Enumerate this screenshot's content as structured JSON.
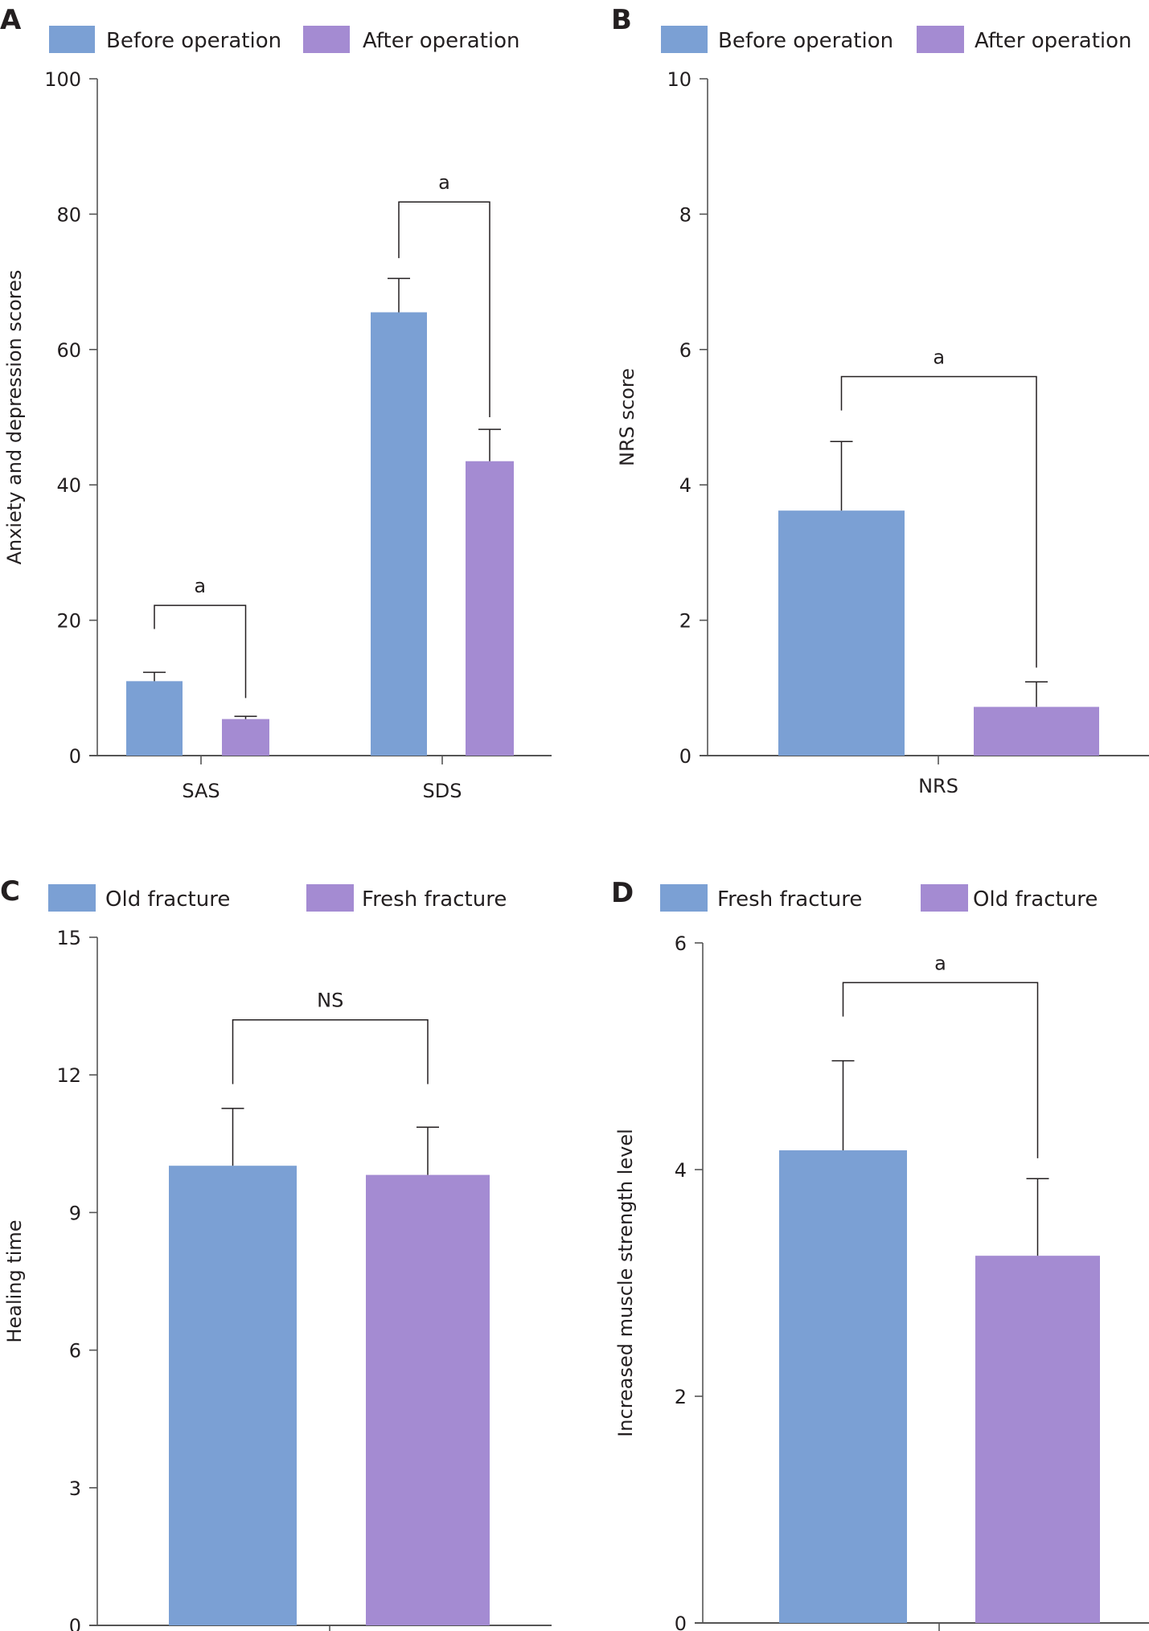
{
  "colors": {
    "blue": "#7ba0d4",
    "purple": "#a48bd2",
    "ink": "#231f20",
    "axis": "#555555"
  },
  "chart_data": [
    {
      "panel": "A",
      "type": "bar",
      "legend": [
        "Before operation",
        "After operation"
      ],
      "legend_position": "top-left",
      "categories": [
        "SAS",
        "SDS"
      ],
      "series": [
        {
          "name": "Before operation",
          "values": [
            11.0,
            65.5
          ],
          "errors": [
            1.3,
            5.0
          ]
        },
        {
          "name": "After operation",
          "values": [
            5.4,
            43.5
          ],
          "errors": [
            0.4,
            4.7
          ]
        }
      ],
      "ylabel": "Anxiety and depression scores",
      "xlabel": "",
      "ylim": [
        0,
        100
      ],
      "yticks": [
        0,
        20,
        40,
        60,
        80,
        100
      ],
      "annotations": [
        {
          "category": "SAS",
          "label": "a"
        },
        {
          "category": "SDS",
          "label": "a"
        }
      ],
      "grid": false
    },
    {
      "panel": "B",
      "type": "bar",
      "legend": [
        "Before operation",
        "After operation"
      ],
      "legend_position": "top-left",
      "categories": [
        "NRS"
      ],
      "series": [
        {
          "name": "Before operation",
          "values": [
            3.62
          ],
          "errors": [
            1.02
          ]
        },
        {
          "name": "After operation",
          "values": [
            0.72
          ],
          "errors": [
            0.37
          ]
        }
      ],
      "ylabel": "NRS score",
      "xlabel": "",
      "ylim": [
        0,
        10
      ],
      "yticks": [
        0,
        2,
        4,
        6,
        8,
        10
      ],
      "annotations": [
        {
          "category": "NRS",
          "label": "a"
        }
      ],
      "grid": false
    },
    {
      "panel": "C",
      "type": "bar",
      "legend": [
        "Old fracture",
        "Fresh fracture"
      ],
      "legend_position": "top-left",
      "categories": [
        ""
      ],
      "series": [
        {
          "name": "Old fracture",
          "values": [
            10.02
          ],
          "errors": [
            1.25
          ]
        },
        {
          "name": "Fresh fracture",
          "values": [
            9.82
          ],
          "errors": [
            1.04
          ]
        }
      ],
      "ylabel": "Healing time",
      "xlabel": "",
      "ylim": [
        0,
        15
      ],
      "yticks": [
        0,
        3,
        6,
        9,
        12,
        15
      ],
      "annotations": [
        {
          "category": "",
          "label": "NS"
        }
      ],
      "grid": false
    },
    {
      "panel": "D",
      "type": "bar",
      "legend": [
        "Fresh fracture",
        "Old fracture"
      ],
      "legend_position": "top-left",
      "categories": [
        ""
      ],
      "series": [
        {
          "name": "Fresh fracture",
          "values": [
            4.17
          ],
          "errors": [
            0.79
          ]
        },
        {
          "name": "Old fracture",
          "values": [
            3.24
          ],
          "errors": [
            0.68
          ]
        }
      ],
      "ylabel": "Increased muscle strength level",
      "xlabel": "",
      "ylim": [
        0,
        6
      ],
      "yticks": [
        0,
        2,
        4,
        6
      ],
      "annotations": [
        {
          "category": "",
          "label": "a"
        }
      ],
      "grid": false
    }
  ]
}
